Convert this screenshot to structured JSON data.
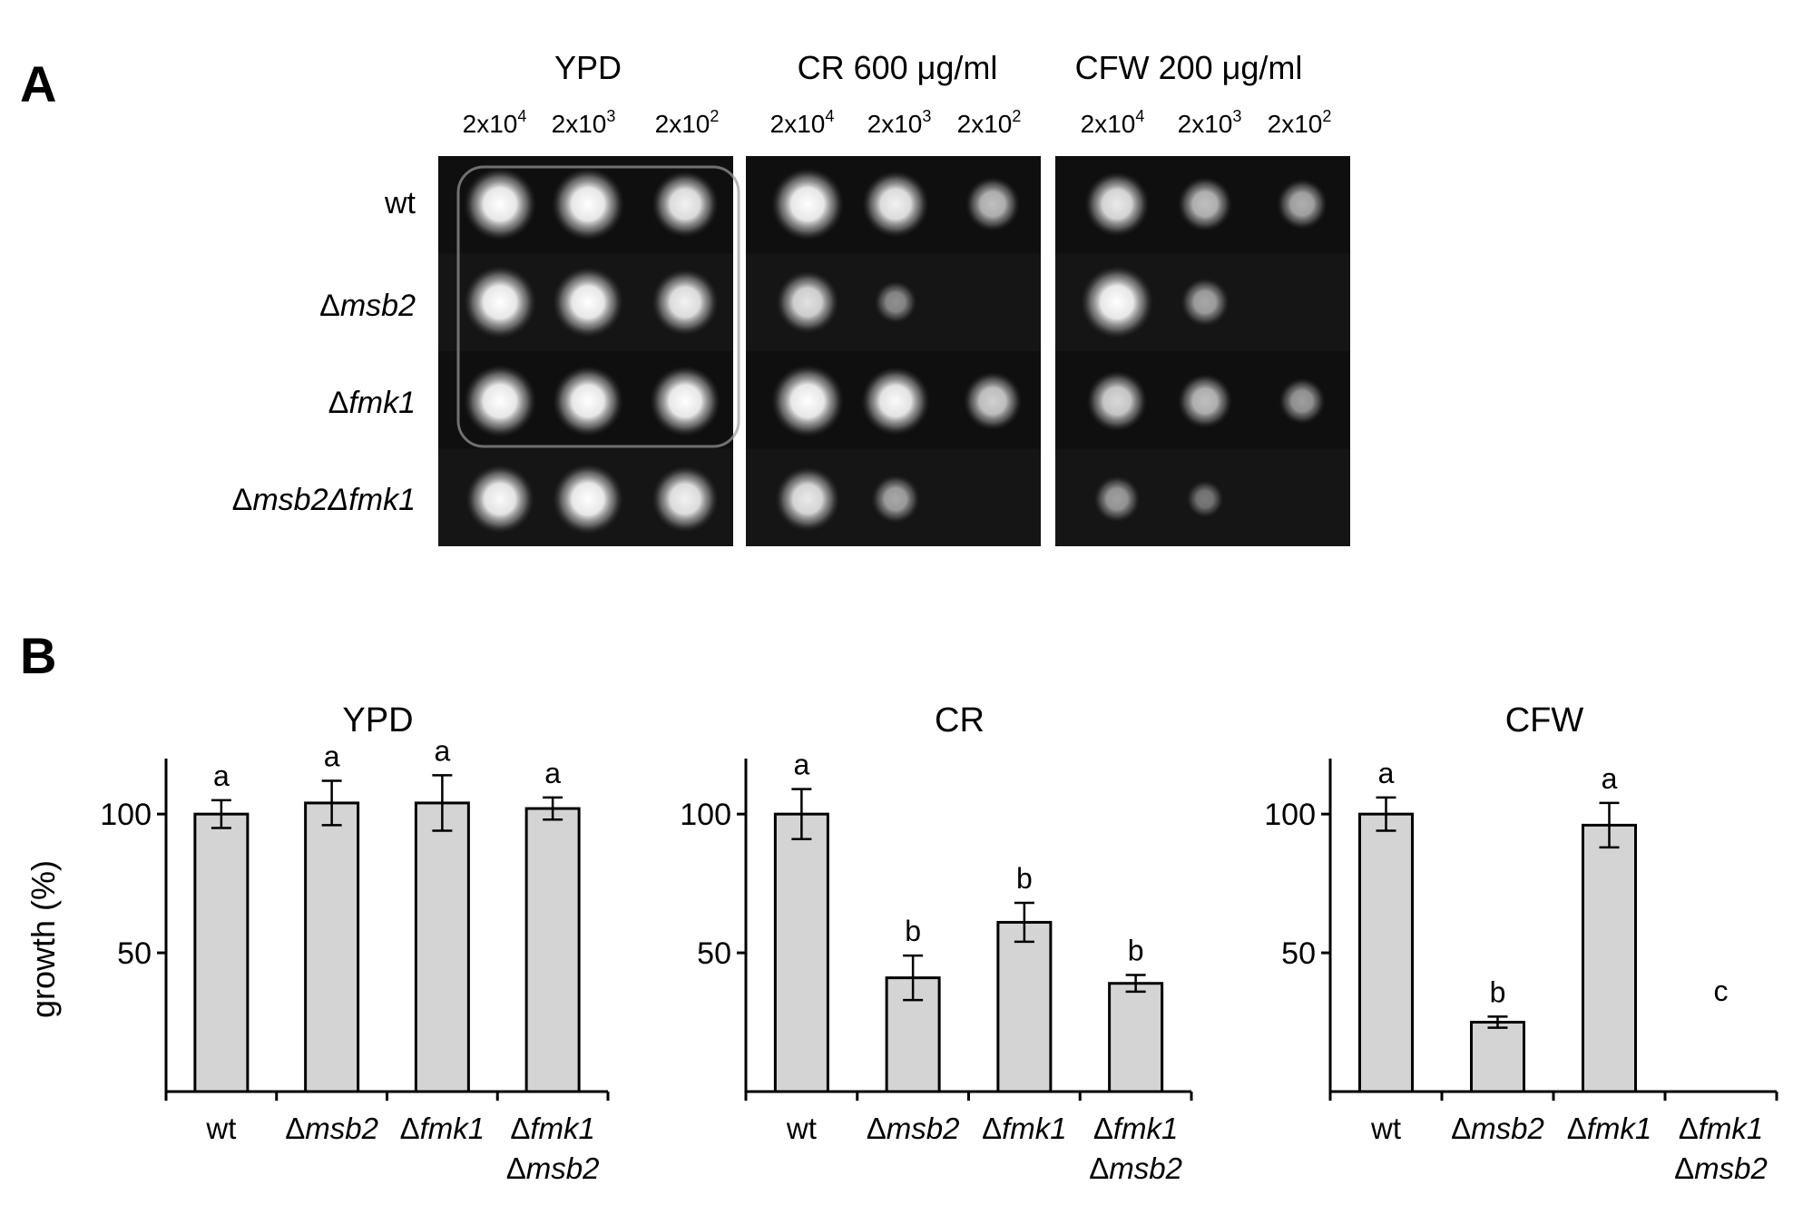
{
  "panel_a": {
    "label": "A",
    "conditions": [
      "YPD",
      "CR 600 μg/ml",
      "CFW 200 μg/ml"
    ],
    "dilutions": [
      {
        "base": "2x10",
        "exp": "4"
      },
      {
        "base": "2x10",
        "exp": "3"
      },
      {
        "base": "2x10",
        "exp": "2"
      }
    ],
    "strains": [
      {
        "prefix": "",
        "name": "wt"
      },
      {
        "prefix": "Δ",
        "name": "msb2"
      },
      {
        "prefix": "Δ",
        "name": "fmk1"
      },
      {
        "prefix": "Δ",
        "name": "msb2Δfmk1"
      }
    ],
    "spots": [
      [
        [
          1.0,
          1.0,
          0.85
        ],
        [
          1.0,
          0.85,
          0.55
        ],
        [
          0.8,
          0.55,
          0.45
        ]
      ],
      [
        [
          1.0,
          0.95,
          0.85
        ],
        [
          0.75,
          0.25,
          0.0
        ],
        [
          1.0,
          0.4,
          0.0
        ]
      ],
      [
        [
          1.0,
          0.95,
          0.95
        ],
        [
          1.0,
          0.9,
          0.65
        ],
        [
          0.7,
          0.55,
          0.35
        ]
      ],
      [
        [
          0.9,
          0.95,
          0.85
        ],
        [
          0.8,
          0.4,
          0.0
        ],
        [
          0.35,
          0.12,
          0.0
        ]
      ]
    ]
  },
  "panel_b": {
    "label": "B",
    "ylabel": "growth (%)",
    "yticks": [
      50,
      100
    ],
    "ylim": [
      0,
      120
    ]
  },
  "chart_data": [
    {
      "type": "bar",
      "title": "YPD",
      "ylabel": "growth (%)",
      "ylim": [
        0,
        120
      ],
      "categories": [
        "wt",
        "Δmsb2",
        "Δfmk1",
        "Δfmk1 Δmsb2"
      ],
      "values": [
        100,
        104,
        104,
        102
      ],
      "errors": [
        5,
        8,
        10,
        4
      ],
      "letters": [
        "a",
        "a",
        "a",
        "a"
      ]
    },
    {
      "type": "bar",
      "title": "CR",
      "ylabel": "",
      "ylim": [
        0,
        120
      ],
      "categories": [
        "wt",
        "Δmsb2",
        "Δfmk1",
        "Δfmk1 Δmsb2"
      ],
      "values": [
        100,
        41,
        61,
        39
      ],
      "errors": [
        9,
        8,
        7,
        3
      ],
      "letters": [
        "a",
        "b",
        "b",
        "b"
      ]
    },
    {
      "type": "bar",
      "title": "CFW",
      "ylabel": "",
      "ylim": [
        0,
        120
      ],
      "categories": [
        "wt",
        "Δmsb2",
        "Δfmk1",
        "Δfmk1 Δmsb2"
      ],
      "values": [
        100,
        25,
        96,
        0
      ],
      "errors": [
        6,
        2,
        8,
        0
      ],
      "letters": [
        "a",
        "b",
        "a",
        "c"
      ]
    }
  ]
}
